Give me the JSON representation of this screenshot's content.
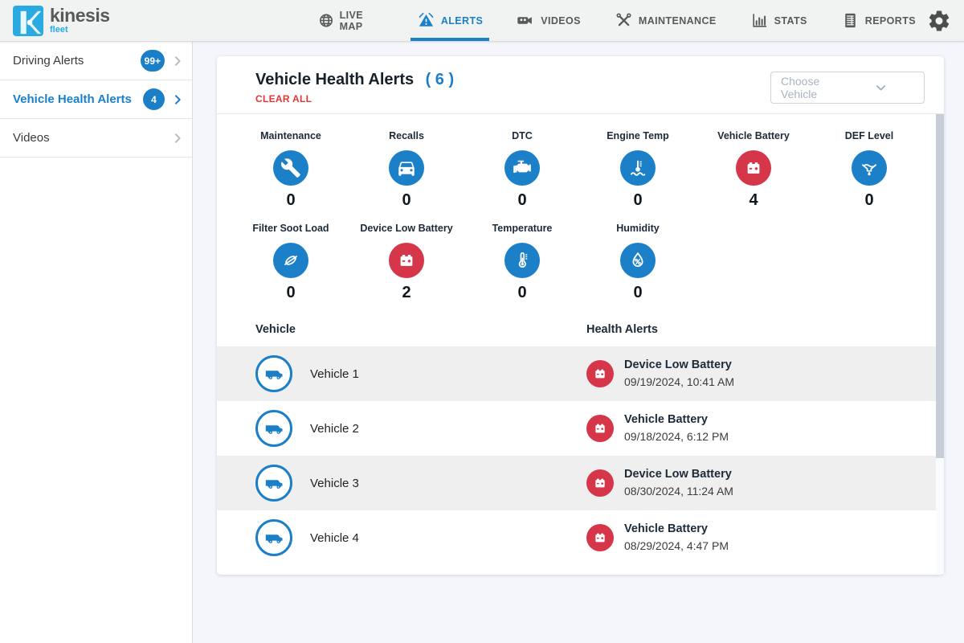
{
  "colors": {
    "accent_blue": "#1b80c8",
    "alert_red": "#d63649",
    "active_tab": "#1a80c9",
    "clear_red": "#e23636"
  },
  "navbar": {
    "logo": {
      "brand": "kinesis",
      "sub": "fleet"
    },
    "tabs": [
      {
        "label": "LIVE MAP",
        "icon": "globe-icon",
        "active": false
      },
      {
        "label": "ALERTS",
        "icon": "alert-triangle-icon",
        "active": true
      },
      {
        "label": "VIDEOS",
        "icon": "video-camera-icon",
        "active": false
      },
      {
        "label": "MAINTENANCE",
        "icon": "crossed-tools-icon",
        "active": false
      },
      {
        "label": "STATS",
        "icon": "bar-chart-icon",
        "active": false
      },
      {
        "label": "REPORTS",
        "icon": "report-icon",
        "active": false
      }
    ],
    "settings_icon": "gear-icon"
  },
  "sidebar": {
    "items": [
      {
        "label": "Driving Alerts",
        "badge": "99+",
        "active": false
      },
      {
        "label": "Vehicle Health Alerts",
        "badge": "4",
        "active": true
      },
      {
        "label": "Videos",
        "badge": null,
        "active": false
      }
    ]
  },
  "main": {
    "title": "Vehicle Health Alerts",
    "count": "( 6 )",
    "clear_all": "CLEAR ALL",
    "vehicle_select": {
      "placeholder": "Choose Vehicle",
      "icon": "chevron-down-icon"
    },
    "categories": [
      {
        "label": "Maintenance",
        "count": "0",
        "icon": "wrench-icon",
        "color": "blue"
      },
      {
        "label": "Recalls",
        "count": "0",
        "icon": "car-icon",
        "color": "blue"
      },
      {
        "label": "DTC",
        "count": "0",
        "icon": "engine-icon",
        "color": "blue"
      },
      {
        "label": "Engine Temp",
        "count": "0",
        "icon": "engine-temp-icon",
        "color": "blue"
      },
      {
        "label": "Vehicle Battery",
        "count": "4",
        "icon": "battery-icon",
        "color": "red"
      },
      {
        "label": "DEF Level",
        "count": "0",
        "icon": "def-level-icon",
        "color": "blue"
      },
      {
        "label": "Filter Soot Load",
        "count": "0",
        "icon": "filter-soot-icon",
        "color": "blue"
      },
      {
        "label": "Device Low Battery",
        "count": "2",
        "icon": "battery-icon",
        "color": "red"
      },
      {
        "label": "Temperature",
        "count": "0",
        "icon": "thermometer-icon",
        "color": "blue"
      },
      {
        "label": "Humidity",
        "count": "0",
        "icon": "humidity-icon",
        "color": "blue"
      }
    ],
    "table": {
      "columns": [
        "Vehicle",
        "Health Alerts"
      ],
      "rows": [
        {
          "vehicle": "Vehicle 1",
          "vehicle_icon": "truck-icon",
          "alert_icon": "battery-icon",
          "alert": "Device Low Battery",
          "timestamp": "09/19/2024, 10:41 AM"
        },
        {
          "vehicle": "Vehicle 2",
          "vehicle_icon": "truck-icon",
          "alert_icon": "battery-icon",
          "alert": "Vehicle Battery",
          "timestamp": "09/18/2024, 6:12 PM"
        },
        {
          "vehicle": "Vehicle 3",
          "vehicle_icon": "truck-icon",
          "alert_icon": "battery-icon",
          "alert": "Device Low Battery",
          "timestamp": "08/30/2024, 11:24 AM"
        },
        {
          "vehicle": "Vehicle 4",
          "vehicle_icon": "truck-icon",
          "alert_icon": "battery-icon",
          "alert": "Vehicle Battery",
          "timestamp": "08/29/2024, 4:47 PM"
        }
      ]
    }
  }
}
